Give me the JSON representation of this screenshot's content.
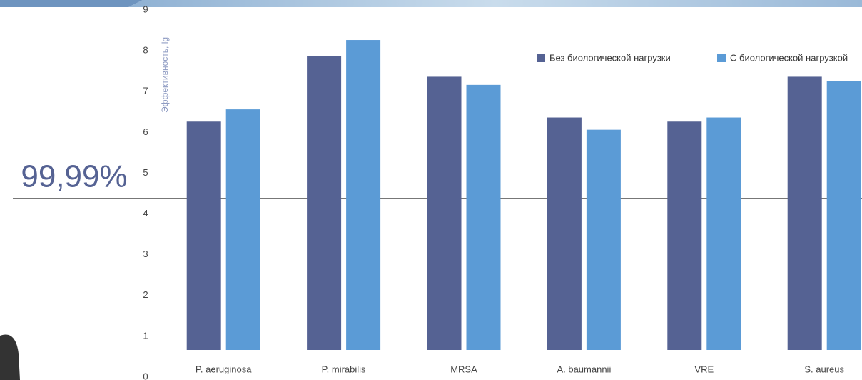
{
  "chart_data": {
    "type": "bar",
    "y_label": "Эффективность, lg",
    "annotation": "99,99%",
    "categories": [
      "P. aeruginosa",
      "P. mirabilis",
      "MRSA",
      "A. baumannii",
      "VRE",
      "S. aureus"
    ],
    "series": [
      {
        "name": "Без биологической нагрузки",
        "color": "#556293",
        "values": [
          5.6,
          7.2,
          6.7,
          5.7,
          5.6,
          6.7
        ]
      },
      {
        "name": "С биологической нагрузкой",
        "color": "#5b9bd6",
        "values": [
          5.9,
          7.6,
          6.5,
          5.4,
          5.7,
          6.6
        ]
      }
    ],
    "ylim": [
      0,
      9
    ],
    "yticks": [
      0,
      1,
      2,
      3,
      4,
      5,
      6,
      7,
      8,
      9
    ],
    "legend": "top-right"
  }
}
